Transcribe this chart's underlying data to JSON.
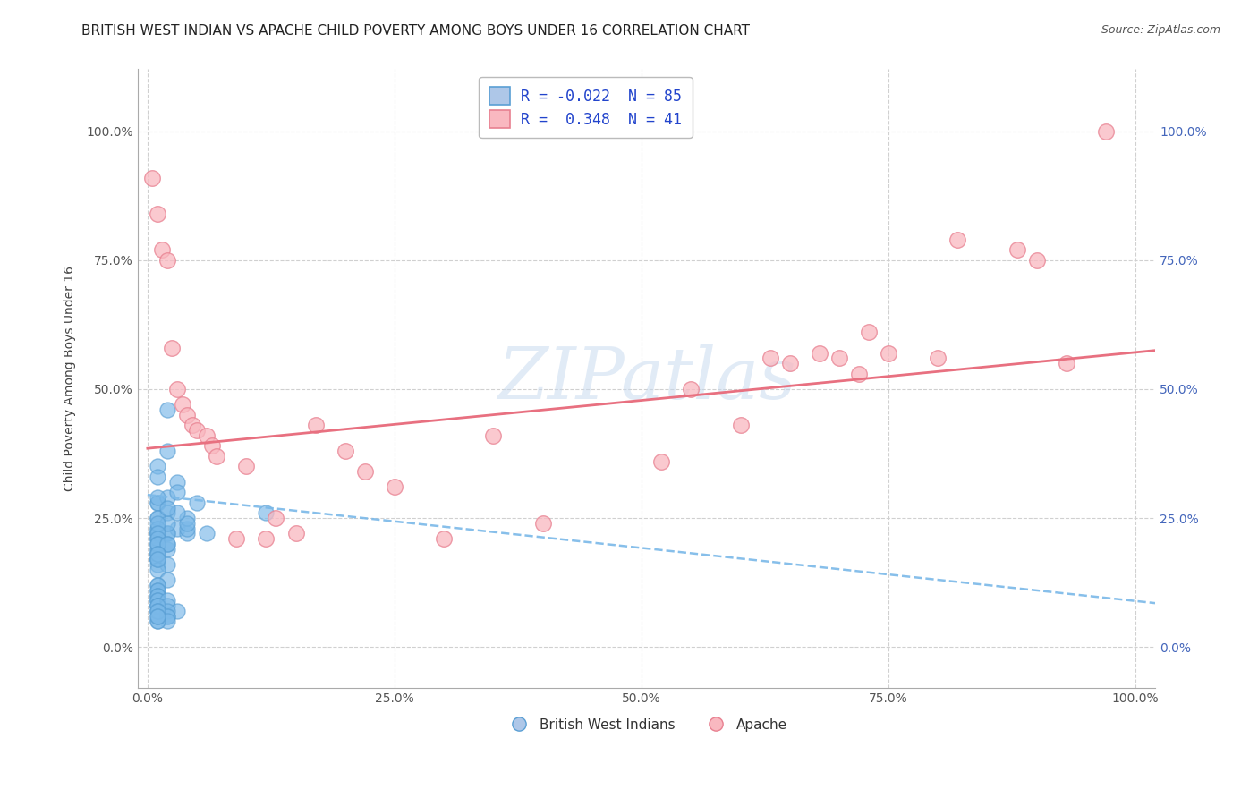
{
  "title": "BRITISH WEST INDIAN VS APACHE CHILD POVERTY AMONG BOYS UNDER 16 CORRELATION CHART",
  "source": "Source: ZipAtlas.com",
  "ylabel": "Child Poverty Among Boys Under 16",
  "xlim": [
    -0.01,
    1.02
  ],
  "ylim": [
    -0.08,
    1.12
  ],
  "xticks": [
    0.0,
    0.25,
    0.5,
    0.75,
    1.0
  ],
  "xticklabels": [
    "0.0%",
    "25.0%",
    "50.0%",
    "75.0%",
    "100.0%"
  ],
  "yticks": [
    0.0,
    0.25,
    0.5,
    0.75,
    1.0
  ],
  "yticklabels": [
    "0.0%",
    "25.0%",
    "50.0%",
    "75.0%",
    "100.0%"
  ],
  "blue_R": -0.022,
  "blue_N": 85,
  "pink_R": 0.348,
  "pink_N": 41,
  "legend_label_blue": "R = -0.022  N = 85",
  "legend_label_pink": "R =  0.348  N = 41",
  "watermark": "ZIPatlas",
  "background_color": "#ffffff",
  "blue_scatter_color": "#7ab8e8",
  "blue_edge_color": "#5a9fd4",
  "pink_scatter_color": "#f9b8c0",
  "pink_edge_color": "#e88090",
  "blue_line_color": "#7ab8e8",
  "pink_line_color": "#e87080",
  "grid_color": "#d0d0d0",
  "right_tick_color": "#4466bb",
  "title_fontsize": 11,
  "tick_fontsize": 10,
  "blue_scatter_x": [
    0.02,
    0.01,
    0.01,
    0.02,
    0.03,
    0.01,
    0.02,
    0.01,
    0.01,
    0.02,
    0.03,
    0.04,
    0.01,
    0.01,
    0.01,
    0.01,
    0.02,
    0.01,
    0.01,
    0.01,
    0.01,
    0.02,
    0.01,
    0.01,
    0.02,
    0.01,
    0.01,
    0.01,
    0.01,
    0.01,
    0.02,
    0.01,
    0.01,
    0.01,
    0.01,
    0.01,
    0.03,
    0.04,
    0.06,
    0.04,
    0.02,
    0.01,
    0.02,
    0.01,
    0.01,
    0.01,
    0.01,
    0.02,
    0.01,
    0.01,
    0.01,
    0.02,
    0.01,
    0.01,
    0.01,
    0.01,
    0.01,
    0.01,
    0.01,
    0.01,
    0.01,
    0.01,
    0.01,
    0.01,
    0.01,
    0.02,
    0.02,
    0.03,
    0.02,
    0.01,
    0.02,
    0.02,
    0.02,
    0.01,
    0.01,
    0.12,
    0.05,
    0.04,
    0.03,
    0.02,
    0.01,
    0.01,
    0.01,
    0.01,
    0.01
  ],
  "blue_scatter_y": [
    0.46,
    0.28,
    0.35,
    0.22,
    0.32,
    0.33,
    0.38,
    0.28,
    0.23,
    0.26,
    0.23,
    0.22,
    0.21,
    0.25,
    0.19,
    0.18,
    0.22,
    0.17,
    0.17,
    0.25,
    0.22,
    0.29,
    0.29,
    0.22,
    0.19,
    0.18,
    0.19,
    0.22,
    0.21,
    0.2,
    0.24,
    0.23,
    0.24,
    0.22,
    0.21,
    0.2,
    0.3,
    0.23,
    0.22,
    0.25,
    0.2,
    0.2,
    0.2,
    0.17,
    0.16,
    0.18,
    0.17,
    0.16,
    0.15,
    0.18,
    0.17,
    0.13,
    0.12,
    0.12,
    0.11,
    0.1,
    0.09,
    0.11,
    0.1,
    0.1,
    0.09,
    0.08,
    0.09,
    0.08,
    0.08,
    0.09,
    0.08,
    0.07,
    0.07,
    0.07,
    0.06,
    0.06,
    0.05,
    0.05,
    0.05,
    0.26,
    0.28,
    0.24,
    0.26,
    0.27,
    0.08,
    0.07,
    0.07,
    0.06,
    0.06
  ],
  "pink_scatter_x": [
    0.005,
    0.01,
    0.015,
    0.02,
    0.025,
    0.03,
    0.035,
    0.04,
    0.045,
    0.05,
    0.06,
    0.065,
    0.07,
    0.09,
    0.1,
    0.12,
    0.13,
    0.15,
    0.17,
    0.2,
    0.22,
    0.25,
    0.35,
    0.52,
    0.6,
    0.63,
    0.65,
    0.68,
    0.7,
    0.72,
    0.73,
    0.8,
    0.82,
    0.88,
    0.9,
    0.93,
    0.97,
    0.3,
    0.4,
    0.55,
    0.75
  ],
  "pink_scatter_y": [
    0.91,
    0.84,
    0.77,
    0.75,
    0.58,
    0.5,
    0.47,
    0.45,
    0.43,
    0.42,
    0.41,
    0.39,
    0.37,
    0.21,
    0.35,
    0.21,
    0.25,
    0.22,
    0.43,
    0.38,
    0.34,
    0.31,
    0.41,
    0.36,
    0.43,
    0.56,
    0.55,
    0.57,
    0.56,
    0.53,
    0.61,
    0.56,
    0.79,
    0.77,
    0.75,
    0.55,
    1.0,
    0.21,
    0.24,
    0.5,
    0.57
  ],
  "blue_line_x0": 0.0,
  "blue_line_x1": 1.02,
  "blue_line_y0": 0.295,
  "blue_line_y1": 0.085,
  "pink_line_x0": 0.0,
  "pink_line_x1": 1.02,
  "pink_line_y0": 0.385,
  "pink_line_y1": 0.575
}
